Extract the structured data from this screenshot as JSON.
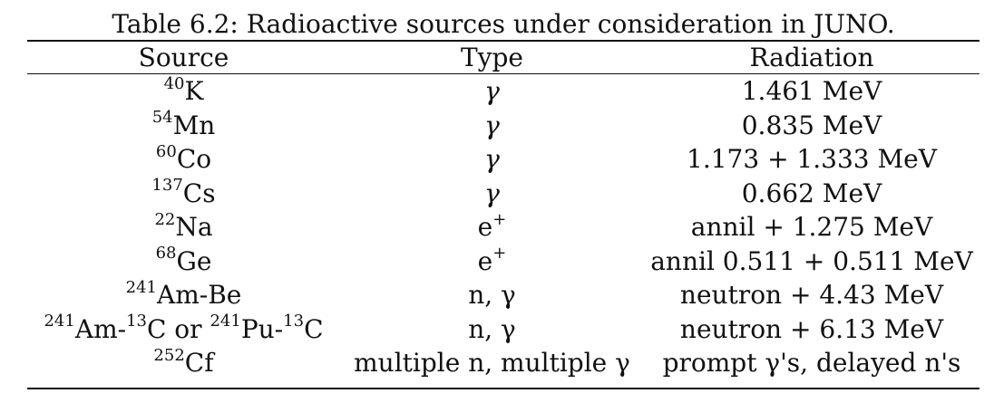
{
  "caption": "Table 6.2: Radioactive sources under consideration in JUNO.",
  "columns": [
    "Source",
    "Type",
    "Radiation"
  ],
  "rows": [
    {
      "source_mass": "40",
      "source_sym": "K",
      "type": "γ",
      "radiation": "1.461 MeV"
    },
    {
      "source_mass": "54",
      "source_sym": "Mn",
      "type": "γ",
      "radiation": "0.835 MeV"
    },
    {
      "source_mass": "60",
      "source_sym": "Co",
      "type": "γ",
      "radiation": "1.173 + 1.333 MeV"
    },
    {
      "source_mass": "137",
      "source_sym": "Cs",
      "type": "γ",
      "radiation": "0.662 MeV"
    },
    {
      "source_mass": "22",
      "source_sym": "Na",
      "type_base": "e",
      "type_sup": "+",
      "radiation": "annil + 1.275 MeV"
    },
    {
      "source_mass": "68",
      "source_sym": "Ge",
      "type_base": "e",
      "type_sup": "+",
      "radiation": "annil 0.511 + 0.511 MeV"
    },
    {
      "source_mass": "241",
      "source_sym": "Am-Be",
      "type": "n, γ",
      "radiation": "neutron + 4.43 MeV"
    },
    {
      "source_a_mass": "241",
      "source_a_sym": "Am-",
      "source_b_mass": "13",
      "source_b_sym": "C or ",
      "source_c_mass": "241",
      "source_c_sym": "Pu-",
      "source_d_mass": "13",
      "source_d_sym": "C",
      "type": "n, γ",
      "radiation": "neutron + 6.13 MeV"
    },
    {
      "source_mass": "252",
      "source_sym": "Cf",
      "type": "multiple n, multiple γ",
      "radiation": "prompt γ's, delayed n's"
    }
  ]
}
